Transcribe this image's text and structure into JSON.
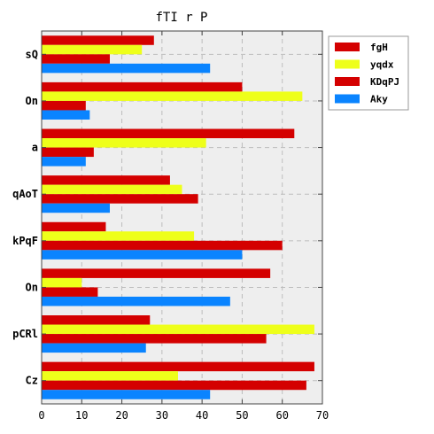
{
  "chart_data": {
    "type": "bar",
    "orientation": "horizontal",
    "title": "fTI r P",
    "xlabel": "",
    "ylabel": "",
    "categories": [
      "sQ",
      "On",
      "a",
      "qAoT",
      "kPqF",
      "On",
      "pCRl",
      "Cz"
    ],
    "series": [
      {
        "name": "fgH",
        "color": "#d40000",
        "values": [
          28,
          50,
          63,
          32,
          16,
          57,
          27,
          68
        ]
      },
      {
        "name": "yqdx",
        "color": "#eeff1a",
        "values": [
          25,
          65,
          41,
          35,
          38,
          10,
          68,
          34
        ]
      },
      {
        "name": "KDqPJ",
        "color": "#d40000",
        "values": [
          17,
          11,
          13,
          39,
          60,
          14,
          56,
          66
        ]
      },
      {
        "name": "Aky",
        "color": "#0a84ff",
        "values": [
          42,
          12,
          11,
          17,
          50,
          47,
          26,
          42
        ]
      }
    ],
    "xlim": [
      0,
      70
    ],
    "xticks": [
      0,
      10,
      20,
      30,
      40,
      50,
      60,
      70
    ],
    "grid": true,
    "legend_position": "top-right",
    "plot_background": "#eeeeee"
  }
}
